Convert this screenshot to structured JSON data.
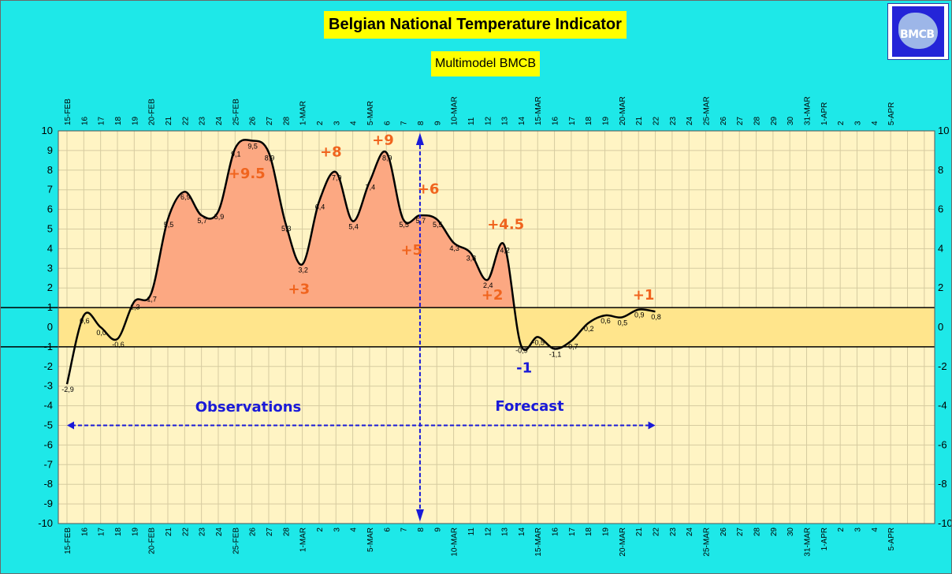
{
  "chart_data": {
    "type": "line",
    "title": "Belgian National Temperature Indicator",
    "subtitle": "Multimodel BMCB",
    "logo_text": "BMCB",
    "ylim": [
      -10,
      10
    ],
    "y2lim": [
      -10,
      10
    ],
    "y_ticks": [
      -10,
      -9,
      -8,
      -7,
      -6,
      -5,
      -4,
      -3,
      -2,
      -1,
      0,
      1,
      2,
      3,
      4,
      5,
      6,
      7,
      8,
      9,
      10
    ],
    "y2_ticks": [
      -10,
      -8,
      -6,
      -4,
      -2,
      0,
      2,
      4,
      6,
      8,
      10
    ],
    "date_labels": [
      "15-FEB",
      "16",
      "17",
      "18",
      "19",
      "20-FEB",
      "21",
      "22",
      "23",
      "24",
      "25-FEB",
      "26",
      "27",
      "28",
      "1-MAR",
      "2",
      "3",
      "4",
      "5-MAR",
      "6",
      "7",
      "8",
      "9",
      "10-MAR",
      "11",
      "12",
      "13",
      "14",
      "15-MAR",
      "16",
      "17",
      "18",
      "19",
      "20-MAR",
      "21",
      "22",
      "23",
      "24",
      "25-MAR",
      "26",
      "27",
      "28",
      "29",
      "30",
      "31-MAR",
      "1-APR",
      "2",
      "3",
      "4",
      "5-APR"
    ],
    "series": [
      {
        "values": [
          -2.9,
          0.6,
          0.0,
          -0.6,
          1.3,
          1.7,
          5.5,
          6.9,
          5.7,
          5.9,
          9.1,
          9.5,
          8.9,
          5.3,
          3.2,
          6.4,
          7.9,
          5.4,
          7.4,
          8.9,
          5.5,
          5.7,
          5.5,
          4.3,
          3.8,
          2.4,
          4.2,
          -0.9,
          -0.5,
          -1.1,
          -0.7,
          0.2,
          0.6,
          0.5,
          0.9,
          0.8
        ],
        "point_labels": [
          "-2,9",
          "0,6",
          "0,0",
          "-0,6",
          "1,3",
          "1,7",
          "5,5",
          "6,9",
          "5,7",
          "5,9",
          "9,1",
          "9,5",
          "8,9",
          "5,3",
          "3,2",
          "6,4",
          "7,9",
          "5,4",
          "7,4",
          "8,9",
          "5,5",
          "5,7",
          "5,5",
          "4,3",
          "3,8",
          "2,4",
          "4,2",
          "-0,9",
          "-0,5",
          "-1,1",
          "-0,7",
          "0,2",
          "0,6",
          "0,5",
          "0,9",
          "0,8"
        ]
      }
    ],
    "normal_band": [
      -1,
      1
    ],
    "today_index": 21,
    "observations_label": "Observations",
    "forecast_label": "Forecast",
    "annotations": [
      {
        "text": "+9.5",
        "x": 10.7,
        "y": 7.6,
        "color": "#f0641e"
      },
      {
        "text": "+8",
        "x": 15.7,
        "y": 8.7,
        "color": "#f0641e"
      },
      {
        "text": "+9",
        "x": 18.8,
        "y": 9.3,
        "color": "#f0641e"
      },
      {
        "text": "+6",
        "x": 21.5,
        "y": 6.8,
        "color": "#f0641e"
      },
      {
        "text": "+5",
        "x": 20.5,
        "y": 3.7,
        "color": "#f0641e"
      },
      {
        "text": "+3",
        "x": 13.8,
        "y": 1.7,
        "color": "#f0641e"
      },
      {
        "text": "+4.5",
        "x": 26.1,
        "y": 5.0,
        "color": "#f0641e"
      },
      {
        "text": "+2",
        "x": 25.3,
        "y": 1.4,
        "color": "#f0641e"
      },
      {
        "text": "+1",
        "x": 34.3,
        "y": 1.4,
        "color": "#f0641e"
      },
      {
        "text": "-1",
        "x": 27.2,
        "y": -2.3,
        "color": "#1a1ad8"
      }
    ],
    "colors": {
      "background": "#1ee8e8",
      "plot": "#fff4c4",
      "band": "#ffe58c",
      "fill": "#fca882",
      "line": "#000000",
      "arrow": "#1a1ad8",
      "grid": "#d6cba0"
    }
  }
}
